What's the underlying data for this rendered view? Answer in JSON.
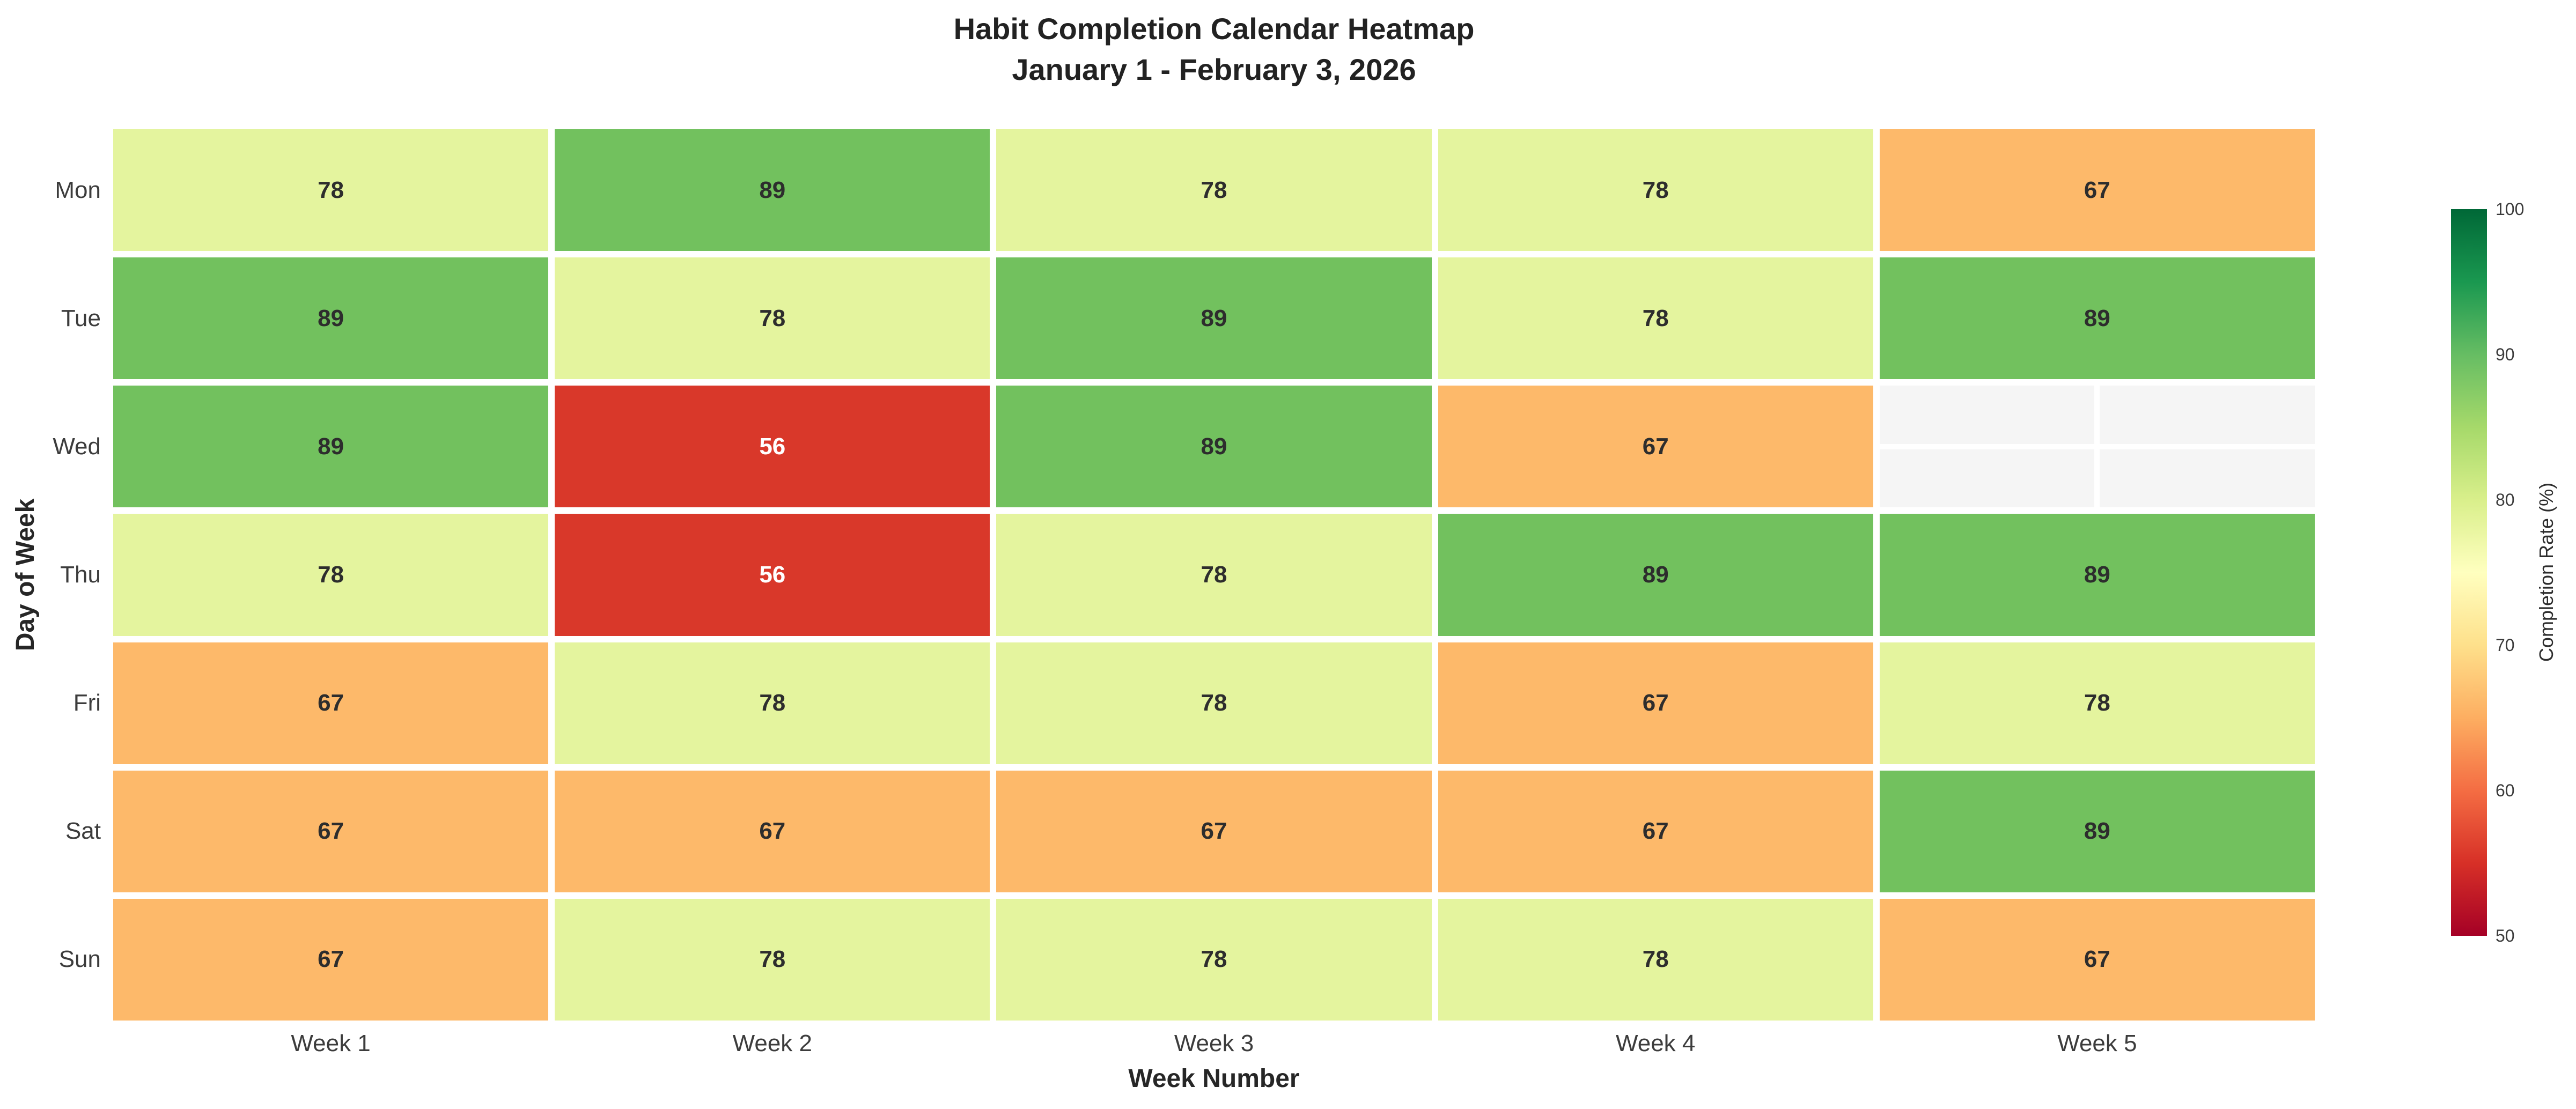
{
  "chart_data": {
    "type": "heatmap",
    "title": "Habit Completion Calendar Heatmap",
    "subtitle": "January 1 - February 3, 2026",
    "xlabel": "Week Number",
    "ylabel": "Day of Week",
    "x_categories": [
      "Week 1",
      "Week 2",
      "Week 3",
      "Week 4",
      "Week 5"
    ],
    "y_categories": [
      "Mon",
      "Tue",
      "Wed",
      "Thu",
      "Fri",
      "Sat",
      "Sun"
    ],
    "values": [
      [
        78,
        89,
        78,
        78,
        67
      ],
      [
        89,
        78,
        89,
        78,
        89
      ],
      [
        89,
        56,
        89,
        67,
        null
      ],
      [
        78,
        56,
        78,
        89,
        89
      ],
      [
        67,
        78,
        78,
        67,
        78
      ],
      [
        67,
        67,
        67,
        67,
        89
      ],
      [
        67,
        78,
        78,
        78,
        67
      ]
    ],
    "missing_cells": [
      {
        "day": "Wed",
        "week": "Week 5"
      }
    ],
    "annotations_on": true,
    "legend_position": "right",
    "colorbar": {
      "label": "Completion Rate (%)",
      "min": 50,
      "max": 100,
      "ticks": [
        50,
        60,
        70,
        80,
        90,
        100
      ],
      "colormap": "RdYlGn",
      "gradient_css": [
        "#a50026 0%",
        "#d73027 10%",
        "#f46d43 20%",
        "#fdae61 30%",
        "#fee08b 40%",
        "#ffffbf 50%",
        "#d9ef8b 60%",
        "#a6d96a 70%",
        "#66bd63 80%",
        "#1a9850 90%",
        "#006837 100%"
      ]
    },
    "style": {
      "cell_colors": {
        "56": "#d9382a",
        "67": "#fdb96a",
        "78": "#e4f49e",
        "89": "#72c15e"
      },
      "cell_text_colors": {
        "56": "#ffffff",
        "default": "#2d2d2d"
      },
      "nan_color": "#f5f5f5",
      "gridline_color": "#ffffff",
      "background": "#ffffff"
    }
  }
}
